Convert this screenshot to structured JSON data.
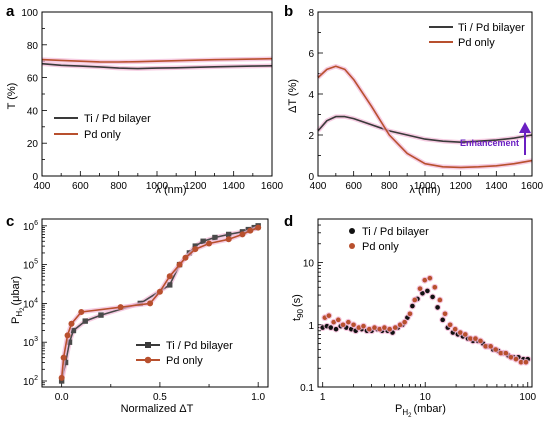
{
  "figure": {
    "panels": [
      "a",
      "b",
      "c",
      "d"
    ],
    "colors": {
      "ti_pd": "#3a3a3a",
      "pd_only": "#b8502e",
      "halo": "#f2b6d6",
      "arrow": "#6a1fc2"
    }
  },
  "chart_data": [
    {
      "panel": "a",
      "type": "line",
      "xlabel": "λ (nm)",
      "ylabel": "T (%)",
      "xlim": [
        400,
        1600
      ],
      "ylim": [
        0,
        100
      ],
      "xticks": [
        400,
        600,
        800,
        1000,
        1200,
        1400,
        1600
      ],
      "yticks": [
        0,
        20,
        40,
        60,
        80,
        100
      ],
      "legend": "middle-left",
      "series": [
        {
          "name": "Ti / Pd bilayer",
          "x": [
            400,
            500,
            600,
            700,
            800,
            900,
            1000,
            1100,
            1200,
            1300,
            1400,
            1500,
            1600
          ],
          "y": [
            68.5,
            67.5,
            67.0,
            66.5,
            65.8,
            65.5,
            65.8,
            66.0,
            66.3,
            66.6,
            66.8,
            67.0,
            67.2
          ]
        },
        {
          "name": "Pd only",
          "x": [
            400,
            500,
            600,
            700,
            800,
            900,
            1000,
            1100,
            1200,
            1300,
            1400,
            1500,
            1600
          ],
          "y": [
            71.0,
            70.5,
            70.0,
            69.6,
            69.5,
            69.7,
            70.0,
            70.3,
            70.6,
            70.9,
            71.1,
            71.3,
            71.5
          ]
        }
      ]
    },
    {
      "panel": "b",
      "type": "line",
      "xlabel": "λ (nm)",
      "ylabel": "ΔT (%)",
      "xlim": [
        400,
        1600
      ],
      "ylim": [
        0,
        8
      ],
      "xticks": [
        400,
        600,
        800,
        1000,
        1200,
        1400,
        1600
      ],
      "yticks": [
        0,
        2,
        4,
        6,
        8
      ],
      "legend": "top-right",
      "annotation": "Enhancement",
      "series": [
        {
          "name": "Ti / Pd bilayer",
          "x": [
            400,
            450,
            500,
            550,
            600,
            700,
            800,
            900,
            1000,
            1100,
            1200,
            1300,
            1400,
            1500,
            1600
          ],
          "y": [
            2.2,
            2.7,
            2.9,
            2.9,
            2.8,
            2.5,
            2.2,
            2.0,
            1.8,
            1.7,
            1.65,
            1.7,
            1.75,
            1.85,
            2.0
          ]
        },
        {
          "name": "Pd only",
          "x": [
            400,
            450,
            500,
            550,
            600,
            700,
            800,
            900,
            1000,
            1100,
            1200,
            1300,
            1400,
            1500,
            1600
          ],
          "y": [
            4.8,
            5.2,
            5.35,
            5.2,
            4.7,
            3.4,
            2.0,
            1.1,
            0.6,
            0.45,
            0.42,
            0.45,
            0.5,
            0.6,
            0.75
          ]
        }
      ]
    },
    {
      "panel": "c",
      "type": "line",
      "xlabel": "Normalized ΔT",
      "ylabel": "P_H2 (μbar)",
      "ylabel_main": "P",
      "ylabel_sub": "H",
      "ylabel_subsub": "2",
      "ylabel_unit": "(μbar)",
      "xlim": [
        -0.1,
        1.05
      ],
      "ylog": true,
      "ylim": [
        70,
        1500000
      ],
      "xticks": [
        0.0,
        0.5,
        1.0
      ],
      "xticklabels": [
        "0.0",
        "0.5",
        "1.0"
      ],
      "yticks": [
        100,
        1000,
        10000,
        100000,
        1000000
      ],
      "legend": "bottom-right",
      "series": [
        {
          "name": "Ti / Pd bilayer",
          "x": [
            0.0,
            0.02,
            0.04,
            0.06,
            0.12,
            0.2,
            0.4,
            0.55,
            0.6,
            0.65,
            0.68,
            0.72,
            0.78,
            0.85,
            0.92,
            0.95,
            0.98,
            1.0
          ],
          "y": [
            100,
            300,
            1000,
            2000,
            3500,
            5000,
            10000,
            30000,
            100000,
            200000,
            300000,
            400000,
            500000,
            600000,
            700000,
            800000,
            900000,
            1000000
          ]
        },
        {
          "name": "Pd only",
          "x": [
            0.0,
            0.01,
            0.03,
            0.05,
            0.1,
            0.3,
            0.45,
            0.5,
            0.55,
            0.6,
            0.63,
            0.68,
            0.75,
            0.85,
            0.92,
            0.96,
            1.0
          ],
          "y": [
            120,
            400,
            1500,
            3000,
            6000,
            8000,
            10000,
            20000,
            50000,
            100000,
            150000,
            250000,
            350000,
            450000,
            600000,
            750000,
            900000
          ]
        }
      ]
    },
    {
      "panel": "d",
      "type": "scatter",
      "xlabel": "P_H2 (mbar)",
      "xlabel_main": "P",
      "xlabel_sub": "H",
      "xlabel_subsub": "2",
      "xlabel_unit": "(mbar)",
      "ylabel": "t90 (s)",
      "ylabel_main": "t",
      "ylabel_sub": "90",
      "ylabel_unit": "(s)",
      "xlog": true,
      "ylog": true,
      "xlim": [
        0.9,
        110
      ],
      "ylim": [
        0.1,
        50
      ],
      "xticks": [
        1,
        10,
        100
      ],
      "yticks": [
        0.1,
        1,
        10
      ],
      "yticklabels": [
        "0.1",
        "1",
        "10"
      ],
      "legend": "top-left",
      "series": [
        {
          "name": "Ti / Pd bilayer",
          "x": [
            1.0,
            1.1,
            1.2,
            1.35,
            1.5,
            1.7,
            1.9,
            2.1,
            2.4,
            2.7,
            3.0,
            3.4,
            3.8,
            4.3,
            4.8,
            5.4,
            6.0,
            6.7,
            7.5,
            8.4,
            9.4,
            10.5,
            11.8,
            13.2,
            14.8,
            16.6,
            18.6,
            20.8,
            23.3,
            26.1,
            29.2,
            32.7,
            36.6,
            41.0,
            46.0,
            51.5,
            57.7,
            64.6,
            72.4,
            81.1,
            90.8,
            100
          ],
          "y": [
            0.9,
            0.95,
            0.9,
            0.85,
            0.95,
            0.9,
            0.85,
            0.8,
            0.85,
            0.8,
            0.8,
            0.85,
            0.8,
            0.8,
            0.75,
            0.9,
            1.0,
            1.3,
            2.0,
            2.6,
            3.2,
            3.5,
            2.8,
            1.9,
            1.2,
            0.9,
            0.75,
            0.7,
            0.65,
            0.6,
            0.55,
            0.55,
            0.5,
            0.45,
            0.4,
            0.38,
            0.35,
            0.32,
            0.3,
            0.3,
            0.28,
            0.28
          ]
        },
        {
          "name": "Pd only",
          "x": [
            1.05,
            1.15,
            1.28,
            1.42,
            1.58,
            1.78,
            2.0,
            2.25,
            2.5,
            2.85,
            3.2,
            3.6,
            4.0,
            4.5,
            5.1,
            5.7,
            6.3,
            7.1,
            7.9,
            8.9,
            9.9,
            11.1,
            12.4,
            13.9,
            15.6,
            17.5,
            19.6,
            22.0,
            24.6,
            27.6,
            30.9,
            34.6,
            38.8,
            43.5,
            48.7,
            54.6,
            61.2,
            68.5,
            76.8,
            86.0,
            96.0
          ],
          "y": [
            1.3,
            1.4,
            1.1,
            1.2,
            1.0,
            1.1,
            1.0,
            0.9,
            0.95,
            0.85,
            0.9,
            0.85,
            0.9,
            0.85,
            0.9,
            1.0,
            1.1,
            1.5,
            2.5,
            3.8,
            5.2,
            5.6,
            4.0,
            2.5,
            1.5,
            1.0,
            0.85,
            0.75,
            0.7,
            0.6,
            0.6,
            0.55,
            0.45,
            0.45,
            0.4,
            0.35,
            0.35,
            0.3,
            0.28,
            0.25,
            0.25
          ]
        }
      ]
    }
  ]
}
